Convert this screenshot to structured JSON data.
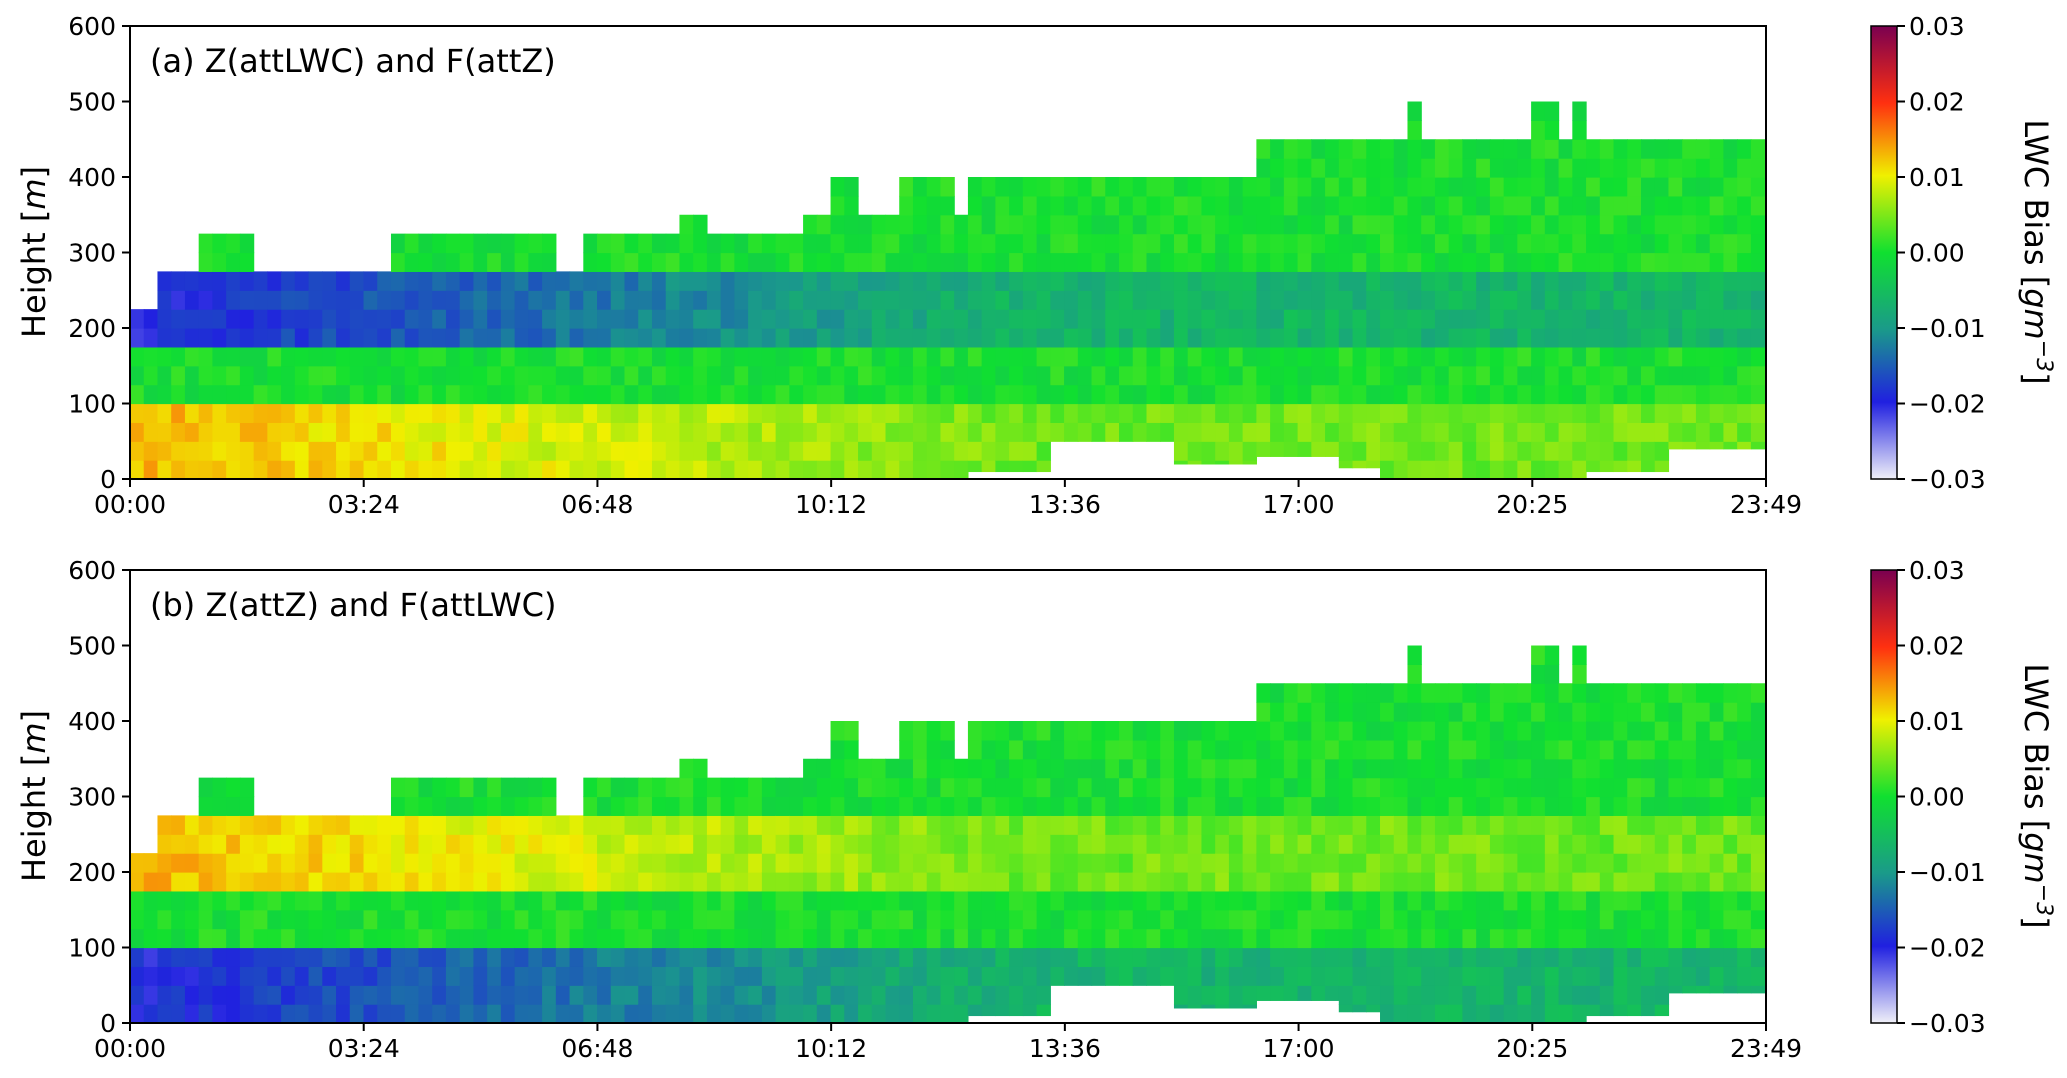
{
  "chart_data": [
    {
      "type": "heatmap",
      "title": "(a) Z(attLWC) and F(attZ)",
      "ylabel": "Height [m]",
      "ylabel_parts": [
        "Height [",
        "m",
        "]"
      ],
      "xlabel": "",
      "x_ticks": [
        "00:00",
        "03:24",
        "06:48",
        "10:12",
        "13:36",
        "17:00",
        "20:25",
        "23:49"
      ],
      "y_ticks": [
        "0",
        "100",
        "200",
        "300",
        "400",
        "500",
        "600"
      ],
      "xlim_hours": [
        0,
        23.82
      ],
      "ylim": [
        0,
        600
      ],
      "grid": false,
      "colorbar": {
        "label": "LWC Bias [gm−3]",
        "label_parts": [
          "LWC Bias [",
          "gm",
          "−3",
          "]"
        ],
        "ticks": [
          "0.03",
          "0.02",
          "0.01",
          "0.00",
          "−0.01",
          "−0.02",
          "−0.03"
        ],
        "range": [
          -0.03,
          0.03
        ]
      },
      "layers_bias": [
        {
          "height_range": [
            0,
            100
          ],
          "bias": 0.012
        },
        {
          "height_range": [
            100,
            175
          ],
          "bias": 0.0
        },
        {
          "height_range": [
            175,
            280
          ],
          "bias": -0.018
        },
        {
          "height_range": [
            280,
            450
          ],
          "bias": 0.0
        }
      ]
    },
    {
      "type": "heatmap",
      "title": "(b) Z(attZ) and F(attLWC)",
      "ylabel": "Height [m]",
      "ylabel_parts": [
        "Height [",
        "m",
        "]"
      ],
      "xlabel": "",
      "x_ticks": [
        "00:00",
        "03:24",
        "06:48",
        "10:12",
        "13:36",
        "17:00",
        "20:25",
        "23:49"
      ],
      "y_ticks": [
        "0",
        "100",
        "200",
        "300",
        "400",
        "500",
        "600"
      ],
      "xlim_hours": [
        0,
        23.82
      ],
      "ylim": [
        0,
        600
      ],
      "grid": false,
      "colorbar": {
        "label": "LWC Bias [gm−3]",
        "label_parts": [
          "LWC Bias [",
          "gm",
          "−3",
          "]"
        ],
        "ticks": [
          "0.03",
          "0.02",
          "0.01",
          "0.00",
          "−0.01",
          "−0.02",
          "−0.03"
        ],
        "range": [
          -0.03,
          0.03
        ]
      },
      "layers_bias": [
        {
          "height_range": [
            0,
            100
          ],
          "bias": -0.018
        },
        {
          "height_range": [
            100,
            175
          ],
          "bias": 0.0
        },
        {
          "height_range": [
            175,
            280
          ],
          "bias": 0.012
        },
        {
          "height_range": [
            280,
            450
          ],
          "bias": 0.0
        }
      ]
    }
  ],
  "cloud_columns": [
    {
      "from": 0.0,
      "to": 0.48,
      "base": 0,
      "top": 225
    },
    {
      "from": 0.48,
      "to": 0.92,
      "base": 0,
      "top": 265
    },
    {
      "from": 0.92,
      "to": 1.82,
      "base": 0,
      "top": 305
    },
    {
      "from": 1.82,
      "to": 2.95,
      "base": 0,
      "top": 265
    },
    {
      "from": 3.05,
      "to": 3.83,
      "base": 0,
      "top": 265
    },
    {
      "from": 3.83,
      "to": 6.3,
      "base": 0,
      "top": 305
    },
    {
      "from": 6.3,
      "to": 6.55,
      "base": 0,
      "top": 265
    },
    {
      "from": 6.55,
      "to": 8.05,
      "base": 0,
      "top": 305
    },
    {
      "from": 8.05,
      "to": 8.4,
      "base": 0,
      "top": 350
    },
    {
      "from": 8.4,
      "to": 9.8,
      "base": 0,
      "top": 305
    },
    {
      "from": 9.8,
      "to": 10.25,
      "base": 0,
      "top": 345
    },
    {
      "from": 10.25,
      "to": 10.6,
      "base": 0,
      "top": 400
    },
    {
      "from": 10.6,
      "to": 11.2,
      "base": 0,
      "top": 345
    },
    {
      "from": 11.2,
      "to": 12.0,
      "base": 0,
      "top": 400
    },
    {
      "from": 12.0,
      "to": 12.2,
      "base": 0,
      "top": 345
    },
    {
      "from": 12.2,
      "to": 13.5,
      "base": 10,
      "top": 395
    },
    {
      "from": 13.5,
      "to": 15.2,
      "base": 50,
      "top": 400
    },
    {
      "from": 15.2,
      "to": 16.5,
      "base": 20,
      "top": 395
    },
    {
      "from": 16.5,
      "to": 17.7,
      "base": 30,
      "top": 445
    },
    {
      "from": 17.7,
      "to": 18.15,
      "base": 15,
      "top": 445
    },
    {
      "from": 18.15,
      "to": 18.3,
      "base": 0,
      "top": 500
    },
    {
      "from": 18.3,
      "to": 18.55,
      "base": 0,
      "top": 445
    },
    {
      "from": 18.55,
      "to": 18.9,
      "base": 0,
      "top": 500
    },
    {
      "from": 18.9,
      "to": 20.4,
      "base": 0,
      "top": 445
    },
    {
      "from": 20.4,
      "to": 20.85,
      "base": 0,
      "top": 500
    },
    {
      "from": 20.85,
      "to": 21.1,
      "base": 0,
      "top": 445
    },
    {
      "from": 21.1,
      "to": 21.3,
      "base": 0,
      "top": 500
    },
    {
      "from": 21.3,
      "to": 22.5,
      "base": 10,
      "top": 445
    },
    {
      "from": 22.5,
      "to": 23.82,
      "base": 40,
      "top": 440
    }
  ]
}
